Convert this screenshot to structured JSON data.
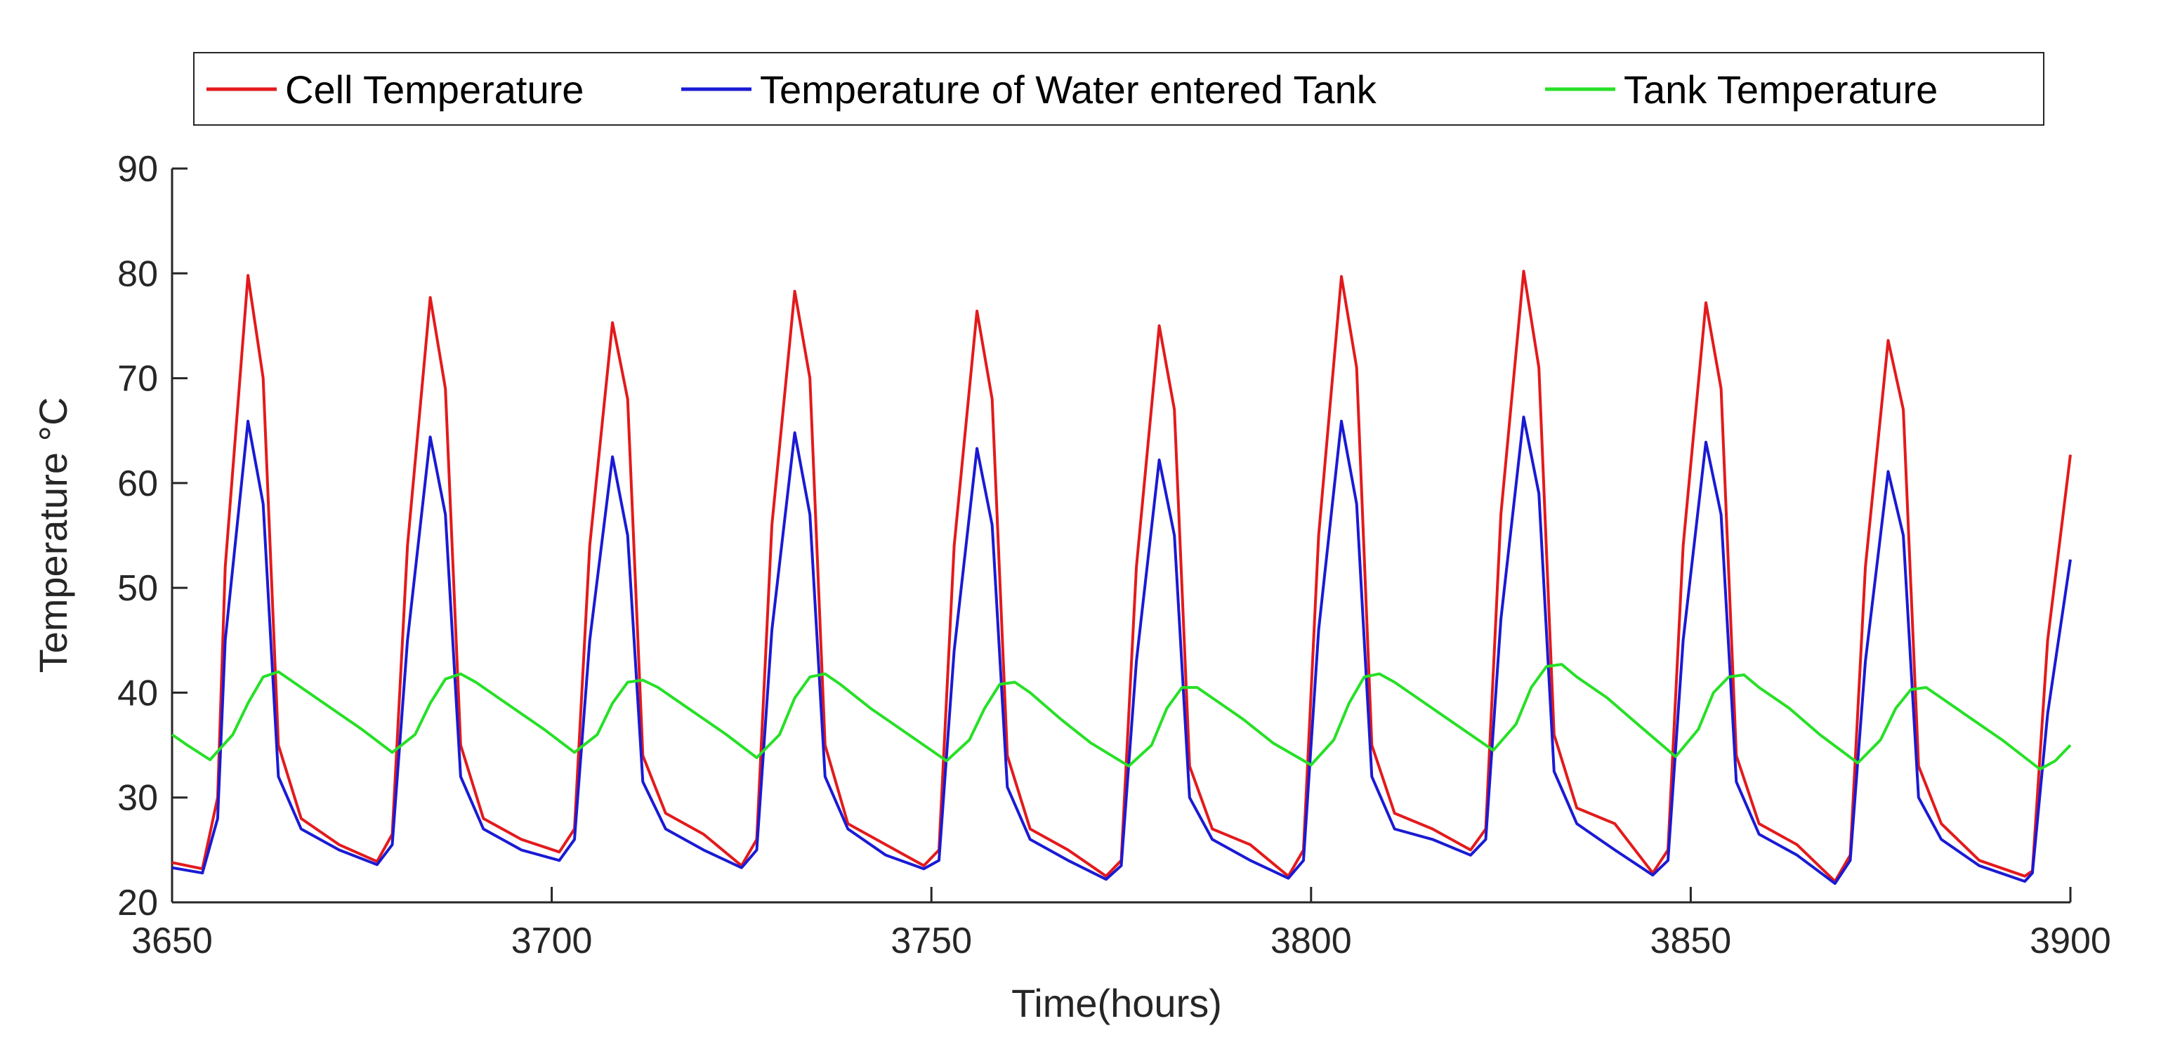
{
  "chart_data": {
    "type": "line",
    "title": "",
    "xlabel": "Time(hours)",
    "ylabel": "Temperature °C",
    "xlim": [
      3650,
      3900
    ],
    "ylim": [
      20,
      90
    ],
    "grid": false,
    "legend_position": "top",
    "x_ticks": [
      "3650",
      "3700",
      "3750",
      "3800",
      "3850",
      "3900"
    ],
    "y_ticks": [
      "20",
      "30",
      "40",
      "50",
      "60",
      "70",
      "80",
      "90"
    ],
    "series": [
      {
        "name": "Cell Temperature",
        "color": "#e31a1c",
        "x": [
          3650,
          3654,
          3656,
          3657,
          3660,
          3662,
          3664,
          3667,
          3672,
          3677,
          3679,
          3681,
          3684,
          3686,
          3688,
          3691,
          3696,
          3701,
          3703,
          3705,
          3708,
          3710,
          3712,
          3715,
          3720,
          3725,
          3727,
          3729,
          3732,
          3734,
          3736,
          3739,
          3744,
          3749,
          3751,
          3753,
          3756,
          3758,
          3760,
          3763,
          3768,
          3773,
          3775,
          3777,
          3780,
          3782,
          3784,
          3787,
          3792,
          3797,
          3799,
          3801,
          3804,
          3806,
          3808,
          3811,
          3816,
          3821,
          3823,
          3825,
          3828,
          3830,
          3832,
          3835,
          3840,
          3845,
          3847,
          3849,
          3852,
          3854,
          3856,
          3859,
          3864,
          3869,
          3871,
          3873,
          3876,
          3878,
          3880,
          3883,
          3888,
          3894,
          3895,
          3897,
          3900
        ],
        "values": [
          23.8,
          23.2,
          30,
          52,
          79.8,
          70,
          35,
          28,
          25.5,
          23.9,
          26.5,
          54,
          77.7,
          69,
          35,
          28,
          26,
          24.8,
          27,
          54,
          75.3,
          68,
          34,
          28.5,
          26.5,
          23.5,
          26,
          56,
          78.3,
          70,
          35,
          27.5,
          25.5,
          23.5,
          25,
          54,
          76.4,
          68,
          34,
          27,
          25,
          22.5,
          24,
          52,
          75,
          67,
          33,
          27,
          25.5,
          22.5,
          25,
          55,
          79.7,
          71,
          35,
          28.5,
          27,
          25,
          27,
          57,
          80.2,
          71,
          36,
          29,
          27.5,
          22.8,
          25,
          54,
          77.2,
          69,
          34,
          27.5,
          25.5,
          22,
          24.5,
          52,
          73.6,
          67,
          33,
          27.5,
          24,
          22.5,
          23,
          45,
          62.7
        ]
      },
      {
        "name": "Temperature of Water entered Tank",
        "color": "#1a1ad4",
        "x": [
          3650,
          3654,
          3656,
          3657,
          3660,
          3662,
          3664,
          3667,
          3672,
          3677,
          3679,
          3681,
          3684,
          3686,
          3688,
          3691,
          3696,
          3701,
          3703,
          3705,
          3708,
          3710,
          3712,
          3715,
          3720,
          3725,
          3727,
          3729,
          3732,
          3734,
          3736,
          3739,
          3744,
          3749,
          3751,
          3753,
          3756,
          3758,
          3760,
          3763,
          3768,
          3773,
          3775,
          3777,
          3780,
          3782,
          3784,
          3787,
          3792,
          3797,
          3799,
          3801,
          3804,
          3806,
          3808,
          3811,
          3816,
          3821,
          3823,
          3825,
          3828,
          3830,
          3832,
          3835,
          3840,
          3845,
          3847,
          3849,
          3852,
          3854,
          3856,
          3859,
          3864,
          3869,
          3871,
          3873,
          3876,
          3878,
          3880,
          3883,
          3888,
          3894,
          3895,
          3897,
          3900
        ],
        "values": [
          23.3,
          22.8,
          28,
          45,
          65.9,
          58,
          32,
          27,
          25,
          23.6,
          25.5,
          45,
          64.4,
          57,
          32,
          27,
          25,
          24,
          26,
          45,
          62.5,
          55,
          31.5,
          27,
          25,
          23.3,
          25,
          46,
          64.8,
          57,
          32,
          27,
          24.5,
          23.2,
          24,
          44,
          63.3,
          56,
          31,
          26,
          24,
          22.2,
          23.5,
          43,
          62.2,
          55,
          30,
          26,
          24,
          22.3,
          24,
          46,
          65.9,
          58,
          32,
          27,
          26,
          24.5,
          26,
          47,
          66.3,
          59,
          32.5,
          27.5,
          25,
          22.6,
          24,
          45,
          63.9,
          57,
          31.5,
          26.5,
          24.5,
          21.8,
          24,
          43,
          61.1,
          55,
          30,
          26,
          23.5,
          22,
          22.8,
          38,
          52.7
        ]
      },
      {
        "name": "Tank Temperature",
        "color": "#26e026",
        "x": [
          3650,
          3652,
          3655,
          3658,
          3660,
          3662,
          3664,
          3666,
          3670,
          3675,
          3679,
          3682,
          3684,
          3686,
          3688,
          3690,
          3694,
          3699,
          3703,
          3706,
          3708,
          3710,
          3712,
          3714,
          3718,
          3723,
          3727,
          3730,
          3732,
          3734,
          3736,
          3738,
          3742,
          3747,
          3752,
          3755,
          3757,
          3759,
          3761,
          3763,
          3767,
          3771,
          3776,
          3779,
          3781,
          3783,
          3785,
          3787,
          3791,
          3795,
          3800,
          3803,
          3805,
          3807,
          3809,
          3811,
          3815,
          3819,
          3824,
          3827,
          3829,
          3831,
          3833,
          3835,
          3839,
          3843,
          3848,
          3851,
          3853,
          3855,
          3857,
          3859,
          3863,
          3867,
          3872,
          3875,
          3877,
          3879,
          3881,
          3883,
          3887,
          3891,
          3896,
          3898,
          3900
        ],
        "values": [
          36,
          35,
          33.6,
          36,
          39,
          41.5,
          42,
          41,
          39,
          36.5,
          34.3,
          36,
          39,
          41.3,
          41.8,
          41,
          39,
          36.5,
          34.3,
          36,
          39,
          41,
          41.2,
          40.5,
          38.5,
          36,
          33.8,
          36,
          39.5,
          41.5,
          41.8,
          40.8,
          38.5,
          36,
          33.5,
          35.5,
          38.5,
          40.8,
          41,
          40,
          37.5,
          35.2,
          33,
          35,
          38.5,
          40.5,
          40.5,
          39.5,
          37.5,
          35.2,
          33.1,
          35.5,
          39,
          41.5,
          41.8,
          41,
          39,
          37,
          34.5,
          37,
          40.5,
          42.5,
          42.7,
          41.5,
          39.5,
          37,
          33.9,
          36.5,
          40,
          41.5,
          41.7,
          40.5,
          38.5,
          36,
          33.3,
          35.5,
          38.5,
          40.3,
          40.5,
          39.5,
          37.5,
          35.5,
          32.7,
          33.5,
          35
        ]
      }
    ]
  }
}
